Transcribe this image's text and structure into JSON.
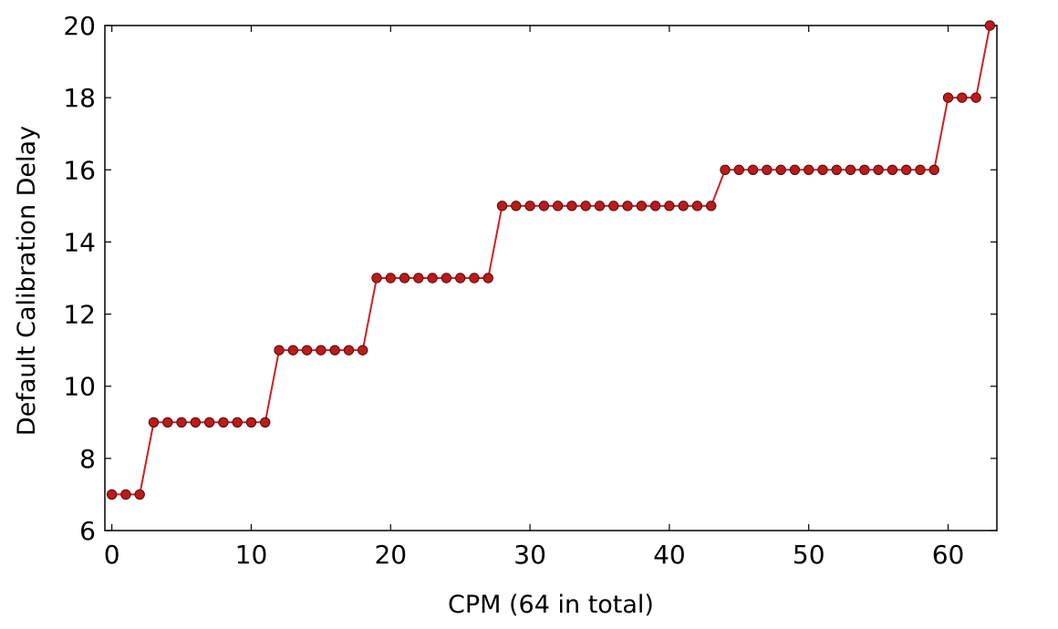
{
  "chart_data": {
    "type": "line",
    "title": "",
    "xlabel": "CPM (64 in total)",
    "ylabel": "Default Calibration Delay",
    "xlim": [
      -0.5,
      63.5
    ],
    "ylim": [
      6,
      20
    ],
    "xticks": [
      0,
      10,
      20,
      30,
      40,
      50,
      60
    ],
    "yticks": [
      6,
      8,
      10,
      12,
      14,
      16,
      18,
      20
    ],
    "xtick_labels": [
      "0",
      "10",
      "20",
      "30",
      "40",
      "50",
      "60"
    ],
    "ytick_labels": [
      "6",
      "8",
      "10",
      "12",
      "14",
      "16",
      "18",
      "20"
    ],
    "grid": false,
    "legend": "none",
    "series": [
      {
        "color": "#cc2222",
        "marker_color": "#b81c1c",
        "x": [
          0,
          1,
          2,
          3,
          4,
          5,
          6,
          7,
          8,
          9,
          10,
          11,
          12,
          13,
          14,
          15,
          16,
          17,
          18,
          19,
          20,
          21,
          22,
          23,
          24,
          25,
          26,
          27,
          28,
          29,
          30,
          31,
          32,
          33,
          34,
          35,
          36,
          37,
          38,
          39,
          40,
          41,
          42,
          43,
          44,
          45,
          46,
          47,
          48,
          49,
          50,
          51,
          52,
          53,
          54,
          55,
          56,
          57,
          58,
          59,
          60,
          61,
          62,
          63
        ],
        "y": [
          7,
          7,
          7,
          9,
          9,
          9,
          9,
          9,
          9,
          9,
          9,
          9,
          11,
          11,
          11,
          11,
          11,
          11,
          11,
          13,
          13,
          13,
          13,
          13,
          13,
          13,
          13,
          13,
          15,
          15,
          15,
          15,
          15,
          15,
          15,
          15,
          15,
          15,
          15,
          15,
          15,
          15,
          15,
          15,
          16,
          16,
          16,
          16,
          16,
          16,
          16,
          16,
          16,
          16,
          16,
          16,
          16,
          16,
          16,
          16,
          18,
          18,
          18,
          20
        ]
      }
    ]
  }
}
